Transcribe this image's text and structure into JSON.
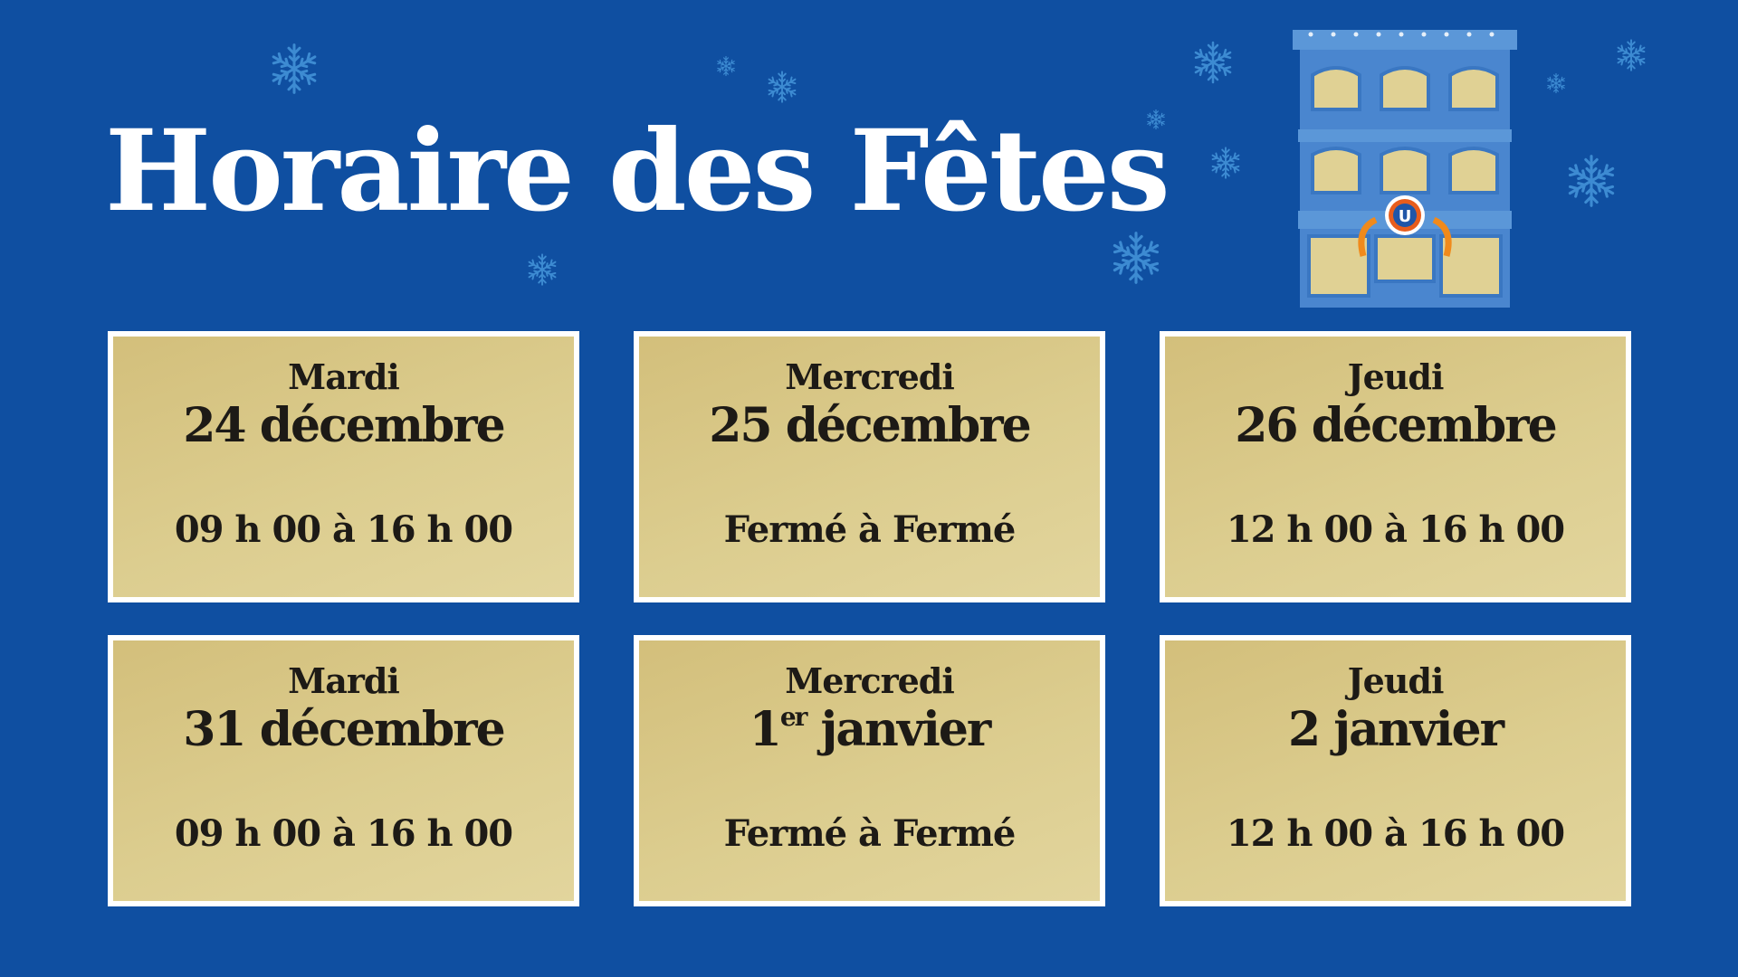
{
  "title": "Horaire des Fêtes",
  "colors": {
    "background": "#0f4fa1",
    "card": "#d8c686",
    "text": "#1d1a16",
    "snowflake": "#3d8bd2",
    "building": "#4a86cf",
    "window": "#e0d194"
  },
  "building": {
    "icon": "store-building-illustration",
    "logo_text": "U"
  },
  "schedule": [
    {
      "day": "Mardi",
      "date": "24 décembre",
      "hours": "09 h 00 à 16 h 00"
    },
    {
      "day": "Mercredi",
      "date": "25 décembre",
      "hours": "Fermé à Fermé"
    },
    {
      "day": "Jeudi",
      "date": "26 décembre",
      "hours": "12 h 00 à 16 h 00"
    },
    {
      "day": "Mardi",
      "date": "31 décembre",
      "hours": "09 h 00 à 16 h 00"
    },
    {
      "day": "Mercredi",
      "date_num": "1",
      "date_sup": "er",
      "date_month": " janvier",
      "hours": "Fermé à Fermé"
    },
    {
      "day": "Jeudi",
      "date": "2 janvier",
      "hours": "12 h 00 à 16 h 00"
    }
  ]
}
